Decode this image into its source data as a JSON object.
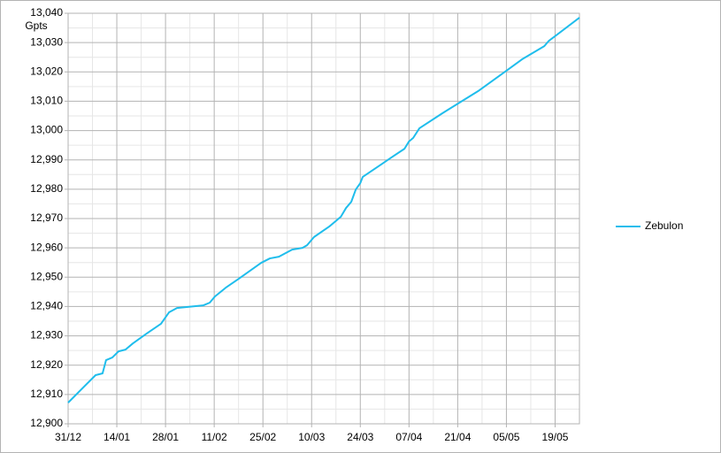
{
  "chart_data": {
    "type": "line",
    "y_label": "Gpts",
    "x": [
      0,
      4.6,
      7.9,
      9.9,
      10.9,
      12.7,
      14.5,
      16.5,
      18.6,
      22.6,
      26.7,
      29,
      31.3,
      33.8,
      38.9,
      40.7,
      42.2,
      45.3,
      49.1,
      55.5,
      58,
      60.6,
      64.4,
      67.4,
      68.7,
      70.7,
      75.1,
      78.4,
      79.9,
      81.4,
      82.7,
      84,
      84.7,
      90.3,
      92.9,
      96.7,
      98,
      99.2,
      101,
      107.6,
      117.8,
      126,
      130.5,
      136.9,
      138.2,
      147
    ],
    "series": [
      {
        "name": "Zebulon",
        "color": "#1fbdec",
        "values": [
          12907.2,
          12912.7,
          12916.6,
          12917.2,
          12921.7,
          12922.6,
          12924.7,
          12925.3,
          12927.4,
          12930.8,
          12934.1,
          12938.0,
          12939.5,
          12939.8,
          12940.4,
          12941.3,
          12943.4,
          12946.4,
          12949.5,
          12954.9,
          12956.4,
          12957.0,
          12959.4,
          12960.0,
          12960.9,
          12963.7,
          12967.3,
          12970.6,
          12973.6,
          12975.7,
          12979.9,
          12982.1,
          12984.2,
          12988.7,
          12990.8,
          12993.8,
          12996.3,
          12997.5,
          13000.8,
          13005.9,
          13013.4,
          13020.4,
          13024.3,
          13028.8,
          13030.6,
          13038.5
        ]
      }
    ],
    "xlim": [
      0,
      147
    ],
    "xticks": [
      {
        "value": 0,
        "label": "31/12"
      },
      {
        "value": 14,
        "label": "14/01"
      },
      {
        "value": 28,
        "label": "28/01"
      },
      {
        "value": 42,
        "label": "11/02"
      },
      {
        "value": 56,
        "label": "25/02"
      },
      {
        "value": 70,
        "label": "10/03"
      },
      {
        "value": 84,
        "label": "24/03"
      },
      {
        "value": 98,
        "label": "07/04"
      },
      {
        "value": 112,
        "label": "21/04"
      },
      {
        "value": 126,
        "label": "05/05"
      },
      {
        "value": 140,
        "label": "19/05"
      }
    ],
    "ylim": [
      12900,
      13040
    ],
    "yticks": [
      {
        "value": 12900,
        "label": "12,900"
      },
      {
        "value": 12910,
        "label": "12,910"
      },
      {
        "value": 12920,
        "label": "12,920"
      },
      {
        "value": 12930,
        "label": "12,930"
      },
      {
        "value": 12940,
        "label": "12,940"
      },
      {
        "value": 12950,
        "label": "12,950"
      },
      {
        "value": 12960,
        "label": "12,960"
      },
      {
        "value": 12970,
        "label": "12,970"
      },
      {
        "value": 12980,
        "label": "12,980"
      },
      {
        "value": 12990,
        "label": "12,990"
      },
      {
        "value": 13000,
        "label": "13,000"
      },
      {
        "value": 13010,
        "label": "13,010"
      },
      {
        "value": 13020,
        "label": "13,020"
      },
      {
        "value": 13030,
        "label": "13,030"
      },
      {
        "value": 13040,
        "label": "13,040"
      }
    ],
    "grid": true,
    "legend": "right"
  }
}
